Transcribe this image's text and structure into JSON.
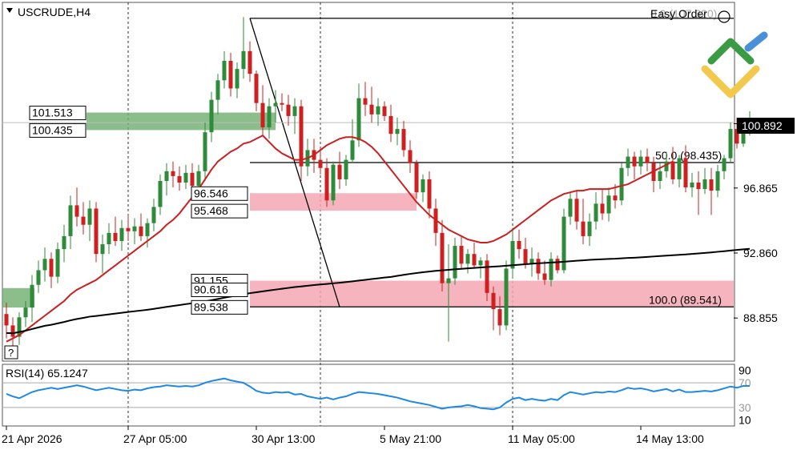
{
  "symbol_label": "USCRUDE,H4",
  "easy_order_label": "Easy Order",
  "question_label": "?",
  "rsi_label": "RSI(14) 65.1247",
  "colors": {
    "up": "#2e8b3a",
    "down": "#cf1f1f",
    "ma_fast": "#cc1f1f",
    "ma_slow": "#000000",
    "rsi": "#1e88e5",
    "zone_green": "#6fae6f",
    "zone_red": "#f5a7b3"
  },
  "chart_data": {
    "type": "candlestick",
    "ylim": [
      86.2,
      108.3
    ],
    "price_ticks": [
      "100.830",
      "96.865",
      "92.860",
      "88.855"
    ],
    "price_tick_values": [
      100.83,
      96.865,
      92.86,
      88.855
    ],
    "time_ticks": [
      "21 Apr 2026",
      "27 Apr 05:00",
      "30 Apr 13:00",
      "5 May 21:00",
      "11 May 05:00",
      "14 May 13:00"
    ],
    "time_tick_bars": [
      0,
      19,
      39,
      59,
      79,
      99
    ],
    "session_separator_bars": [
      19,
      49,
      79
    ],
    "current_price": "100.892",
    "current_price_value": 100.892,
    "candles": [
      [
        89.1,
        89.8,
        87.6,
        88.4
      ],
      [
        88.4,
        88.9,
        86.8,
        87.7
      ],
      [
        87.7,
        89.2,
        87.2,
        88.9
      ],
      [
        88.9,
        89.9,
        88.3,
        89.5
      ],
      [
        89.5,
        91.5,
        88.6,
        90.9
      ],
      [
        90.9,
        92.4,
        90.4,
        91.8
      ],
      [
        91.8,
        93.2,
        91.1,
        92.5
      ],
      [
        92.5,
        92.9,
        90.7,
        91.4
      ],
      [
        91.4,
        93.5,
        91.0,
        93.1
      ],
      [
        93.1,
        94.6,
        92.3,
        93.9
      ],
      [
        93.9,
        96.4,
        93.1,
        95.8
      ],
      [
        95.8,
        96.9,
        94.5,
        95.1
      ],
      [
        95.1,
        96.0,
        94.0,
        94.6
      ],
      [
        94.6,
        96.1,
        93.6,
        95.6
      ],
      [
        95.6,
        96.0,
        92.3,
        92.8
      ],
      [
        92.8,
        94.0,
        91.6,
        93.4
      ],
      [
        93.4,
        94.7,
        92.8,
        94.1
      ],
      [
        94.1,
        95.1,
        93.3,
        93.6
      ],
      [
        93.6,
        94.9,
        93.0,
        94.4
      ],
      [
        94.4,
        95.2,
        93.6,
        94.2
      ],
      [
        94.2,
        95.0,
        93.4,
        94.5
      ],
      [
        94.5,
        95.3,
        93.6,
        93.9
      ],
      [
        93.9,
        95.0,
        93.2,
        94.7
      ],
      [
        94.7,
        96.2,
        94.2,
        95.7
      ],
      [
        95.7,
        97.7,
        95.2,
        97.3
      ],
      [
        97.3,
        98.4,
        96.4,
        97.9
      ],
      [
        97.9,
        98.5,
        96.9,
        97.6
      ],
      [
        97.6,
        98.2,
        96.7,
        97.2
      ],
      [
        97.2,
        98.3,
        96.8,
        97.8
      ],
      [
        97.8,
        98.4,
        96.7,
        97.0
      ],
      [
        97.0,
        98.3,
        96.6,
        97.9
      ],
      [
        97.9,
        100.9,
        97.3,
        100.3
      ],
      [
        100.3,
        102.8,
        99.7,
        102.3
      ],
      [
        102.3,
        103.9,
        101.4,
        103.5
      ],
      [
        103.5,
        105.3,
        103.0,
        104.7
      ],
      [
        104.7,
        105.2,
        102.5,
        103.0
      ],
      [
        103.0,
        104.6,
        102.4,
        104.2
      ],
      [
        104.2,
        107.4,
        103.6,
        105.3
      ],
      [
        105.3,
        105.9,
        103.4,
        103.9
      ],
      [
        103.9,
        104.1,
        101.6,
        102.1
      ],
      [
        102.1,
        103.2,
        100.1,
        100.6
      ],
      [
        100.6,
        102.4,
        99.9,
        101.9
      ],
      [
        101.9,
        102.9,
        100.9,
        102.1
      ],
      [
        102.1,
        102.7,
        101.6,
        102.0
      ],
      [
        102.0,
        102.6,
        100.7,
        101.3
      ],
      [
        101.3,
        102.4,
        100.2,
        101.9
      ],
      [
        101.9,
        102.3,
        97.3,
        98.2
      ],
      [
        98.2,
        99.9,
        97.6,
        99.2
      ],
      [
        99.2,
        99.9,
        97.8,
        98.6
      ],
      [
        98.6,
        99.4,
        97.7,
        98.1
      ],
      [
        98.1,
        98.7,
        95.7,
        96.1
      ],
      [
        96.1,
        98.5,
        95.8,
        98.3
      ],
      [
        98.3,
        99.1,
        96.8,
        97.4
      ],
      [
        97.4,
        98.9,
        97.0,
        98.6
      ],
      [
        98.6,
        101.1,
        98.4,
        99.8
      ],
      [
        99.8,
        103.3,
        99.4,
        102.4
      ],
      [
        102.4,
        103.4,
        101.3,
        102.0
      ],
      [
        102.0,
        103.1,
        100.9,
        101.4
      ],
      [
        101.4,
        102.4,
        100.7,
        101.9
      ],
      [
        101.9,
        102.2,
        101.0,
        101.3
      ],
      [
        101.3,
        102.0,
        99.7,
        100.2
      ],
      [
        100.2,
        101.2,
        99.5,
        100.5
      ],
      [
        100.5,
        101.0,
        98.8,
        99.2
      ],
      [
        99.2,
        99.8,
        97.8,
        98.4
      ],
      [
        98.4,
        98.6,
        96.2,
        96.6
      ],
      [
        96.6,
        97.7,
        96.0,
        97.4
      ],
      [
        97.4,
        97.9,
        95.0,
        95.6
      ],
      [
        95.6,
        96.2,
        93.3,
        94.1
      ],
      [
        94.1,
        94.9,
        90.5,
        91.0
      ],
      [
        91.0,
        93.4,
        87.4,
        91.3
      ],
      [
        91.3,
        93.8,
        90.9,
        93.3
      ],
      [
        93.3,
        93.9,
        91.9,
        92.2
      ],
      [
        92.2,
        93.1,
        91.6,
        92.8
      ],
      [
        92.8,
        93.5,
        91.9,
        92.1
      ],
      [
        92.1,
        92.6,
        91.3,
        92.4
      ],
      [
        92.4,
        92.8,
        89.9,
        90.4
      ],
      [
        90.4,
        90.8,
        88.1,
        89.4
      ],
      [
        89.4,
        90.2,
        87.8,
        88.4
      ],
      [
        88.4,
        92.4,
        88.1,
        91.9
      ],
      [
        91.9,
        94.3,
        91.3,
        93.6
      ],
      [
        93.6,
        94.3,
        92.5,
        93.1
      ],
      [
        93.1,
        93.8,
        91.9,
        92.2
      ],
      [
        92.2,
        93.2,
        91.4,
        92.5
      ],
      [
        92.5,
        92.9,
        91.2,
        91.6
      ],
      [
        91.6,
        92.4,
        90.9,
        91.2
      ],
      [
        91.2,
        92.9,
        90.8,
        92.5
      ],
      [
        92.5,
        92.7,
        91.6,
        91.8
      ],
      [
        91.8,
        95.6,
        91.6,
        95.1
      ],
      [
        95.1,
        96.6,
        94.6,
        96.2
      ],
      [
        96.2,
        96.7,
        94.3,
        94.8
      ],
      [
        94.8,
        96.2,
        93.4,
        93.9
      ],
      [
        93.9,
        95.3,
        93.3,
        94.8
      ],
      [
        94.8,
        96.6,
        94.3,
        95.9
      ],
      [
        95.9,
        96.8,
        94.9,
        95.3
      ],
      [
        95.3,
        96.9,
        94.8,
        96.4
      ],
      [
        96.4,
        97.1,
        95.6,
        96.1
      ],
      [
        96.1,
        98.4,
        95.8,
        98.1
      ],
      [
        98.1,
        99.3,
        97.6,
        98.8
      ],
      [
        98.8,
        99.1,
        97.4,
        98.2
      ],
      [
        98.2,
        99.2,
        97.7,
        98.8
      ],
      [
        98.8,
        99.3,
        97.9,
        98.4
      ],
      [
        98.4,
        98.8,
        96.6,
        97.3
      ],
      [
        97.3,
        98.4,
        96.8,
        97.9
      ],
      [
        97.9,
        99.1,
        97.5,
        98.5
      ],
      [
        98.5,
        99.4,
        97.1,
        97.4
      ],
      [
        97.4,
        98.9,
        96.9,
        98.7
      ],
      [
        98.7,
        99.5,
        96.6,
        96.9
      ],
      [
        96.9,
        97.8,
        96.3,
        97.2
      ],
      [
        97.2,
        97.9,
        95.2,
        96.8
      ],
      [
        96.8,
        98.1,
        96.5,
        97.4
      ],
      [
        97.4,
        98.1,
        95.2,
        96.7
      ],
      [
        96.7,
        98.3,
        96.3,
        97.9
      ],
      [
        97.9,
        98.9,
        97.4,
        98.7
      ],
      [
        98.7,
        100.9,
        98.4,
        100.5
      ],
      [
        100.5,
        101.2,
        99.3,
        99.6
      ],
      [
        99.6,
        101.0,
        99.4,
        100.4
      ],
      [
        100.4,
        101.6,
        100.1,
        100.9
      ]
    ],
    "ma_fast": [
      87.4,
      87.6,
      87.8,
      88.1,
      88.4,
      88.7,
      89.0,
      89.3,
      89.6,
      89.9,
      90.3,
      90.6,
      90.8,
      91.0,
      91.2,
      91.5,
      91.8,
      92.1,
      92.4,
      92.7,
      93.0,
      93.3,
      93.6,
      93.9,
      94.2,
      94.6,
      94.9,
      95.3,
      95.8,
      96.3,
      96.8,
      97.4,
      98.0,
      98.5,
      98.8,
      99.1,
      99.3,
      99.6,
      99.7,
      99.9,
      100.1,
      99.7,
      99.3,
      99.0,
      98.8,
      98.6,
      98.6,
      98.7,
      98.9,
      99.2,
      99.5,
      99.7,
      99.9,
      100.0,
      100.0,
      99.9,
      99.7,
      99.4,
      99.0,
      98.5,
      98.0,
      97.5,
      97.0,
      96.5,
      96.0,
      95.6,
      95.2,
      94.9,
      94.6,
      94.3,
      94.1,
      93.9,
      93.7,
      93.6,
      93.5,
      93.5,
      93.6,
      93.8,
      94.0,
      94.3,
      94.6,
      94.9,
      95.2,
      95.5,
      95.8,
      96.1,
      96.3,
      96.5,
      96.6,
      96.7,
      96.7,
      96.8,
      96.8,
      96.8,
      96.8,
      96.9,
      97.0,
      97.1,
      97.3,
      97.5,
      97.7,
      97.9,
      98.1,
      98.3,
      98.5
    ]
  },
  "levels": {
    "fib_top": "0.0 (107.320)",
    "fib_mid": "50.0 (98.435)",
    "fib_bot": "100.0 (89.541)",
    "fib_top_value": 107.32,
    "fib_mid_value": 98.435,
    "fib_bot_value": 89.541,
    "green_zone": [
      "101.513",
      "100.435"
    ],
    "red_zone_mid": [
      "96.546",
      "95.468"
    ],
    "red_zone_low": [
      "91.155",
      "90.616",
      "89.538"
    ],
    "green_zone_values": [
      101.513,
      100.435
    ],
    "red_zone_mid_values": [
      96.546,
      95.468
    ],
    "red_zone_low_values": [
      91.155,
      90.616,
      89.538
    ]
  },
  "rsi": {
    "period": 14,
    "value": 65.1247,
    "levels": [
      "90",
      "70",
      "30",
      "10"
    ],
    "level_values": [
      90,
      70,
      30,
      10
    ],
    "ylim": [
      0,
      100
    ],
    "values": [
      52,
      48,
      45,
      50,
      55,
      58,
      60,
      62,
      60,
      62,
      64,
      66,
      64,
      61,
      58,
      60,
      62,
      60,
      58,
      57,
      59,
      58,
      61,
      63,
      64,
      66,
      65,
      64,
      65,
      64,
      66,
      70,
      73,
      75,
      77,
      74,
      72,
      70,
      64,
      57,
      54,
      53,
      55,
      54,
      55,
      51,
      52,
      48,
      46,
      44,
      46,
      43,
      46,
      48,
      52,
      55,
      54,
      53,
      52,
      50,
      48,
      46,
      43,
      40,
      38,
      36,
      34,
      31,
      28,
      30,
      31,
      32,
      34,
      32,
      29,
      28,
      27,
      30,
      38,
      44,
      46,
      42,
      44,
      42,
      41,
      44,
      42,
      50,
      55,
      53,
      51,
      53,
      55,
      54,
      56,
      55,
      58,
      62,
      60,
      61,
      59,
      56,
      58,
      60,
      56,
      59,
      55,
      55,
      56,
      57,
      56,
      58,
      61,
      64,
      62,
      65,
      65
    ]
  }
}
